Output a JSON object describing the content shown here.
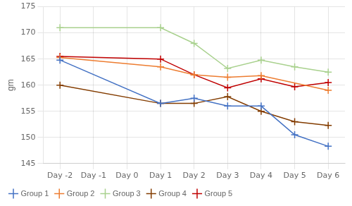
{
  "chart_data": {
    "type": "line",
    "categories": [
      "Day -2",
      "Day -1",
      "Day 0",
      "Day 1",
      "Day 2",
      "Day 3",
      "Day 4",
      "Day 5",
      "Day 6"
    ],
    "series": [
      {
        "name": "Group 1",
        "color": "#4472C4",
        "marker": "+",
        "values": [
          164.8,
          null,
          null,
          156.5,
          157.5,
          156.0,
          156.0,
          150.5,
          148.3
        ]
      },
      {
        "name": "Group 2",
        "color": "#ED7D31",
        "marker": "+",
        "values": [
          165.3,
          null,
          null,
          163.5,
          162.0,
          161.5,
          161.8,
          null,
          159.0
        ]
      },
      {
        "name": "Group 3",
        "color": "#A9D18E",
        "marker": "+",
        "values": [
          171.0,
          null,
          null,
          171.0,
          168.0,
          163.2,
          164.8,
          163.5,
          162.5
        ]
      },
      {
        "name": "Group 4",
        "color": "#833C00",
        "marker": "+",
        "values": [
          160.0,
          null,
          null,
          156.5,
          156.5,
          157.8,
          155.0,
          153.0,
          152.3
        ]
      },
      {
        "name": "Group 5",
        "color": "#C00000",
        "marker": "+",
        "values": [
          165.5,
          null,
          null,
          165.0,
          162.0,
          159.5,
          161.2,
          159.7,
          160.5
        ]
      }
    ],
    "y_label": "gm",
    "ylim": [
      145,
      175
    ],
    "yticks": [
      145,
      150,
      155,
      160,
      165,
      170,
      175
    ],
    "grid": true,
    "legend": "lower left"
  }
}
